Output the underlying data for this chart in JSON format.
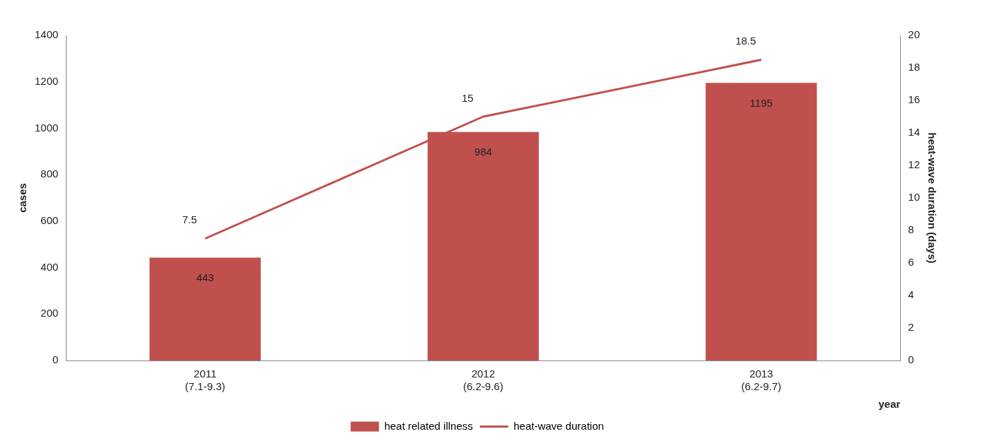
{
  "chart_data": {
    "type": "bar",
    "xlabel": "year",
    "ylabel": "cases",
    "y2label": "heat-wave duration (days)",
    "categories": [
      "2011\n(7.1-9.3)",
      "2012\n(6.2-9.6)",
      "2013\n(6.2-9.7)"
    ],
    "series": [
      {
        "name": "heat related illness",
        "color": "#c0504d",
        "values": [
          443,
          984,
          1195
        ]
      },
      {
        "name": "heat-wave duration",
        "type": "line",
        "axis": "y2",
        "color": "#c0504d",
        "values": [
          7.5,
          15,
          18.5
        ]
      }
    ],
    "ylim": [
      0,
      1400
    ],
    "yticks": [
      0,
      200,
      400,
      600,
      800,
      1000,
      1200,
      1400
    ],
    "y2lim": [
      0,
      20
    ],
    "y2ticks": [
      0,
      2,
      4,
      6,
      8,
      10,
      12,
      14,
      16,
      18,
      20
    ],
    "data_labels": true,
    "legend": "bottom",
    "grid": false,
    "marker": "none"
  }
}
